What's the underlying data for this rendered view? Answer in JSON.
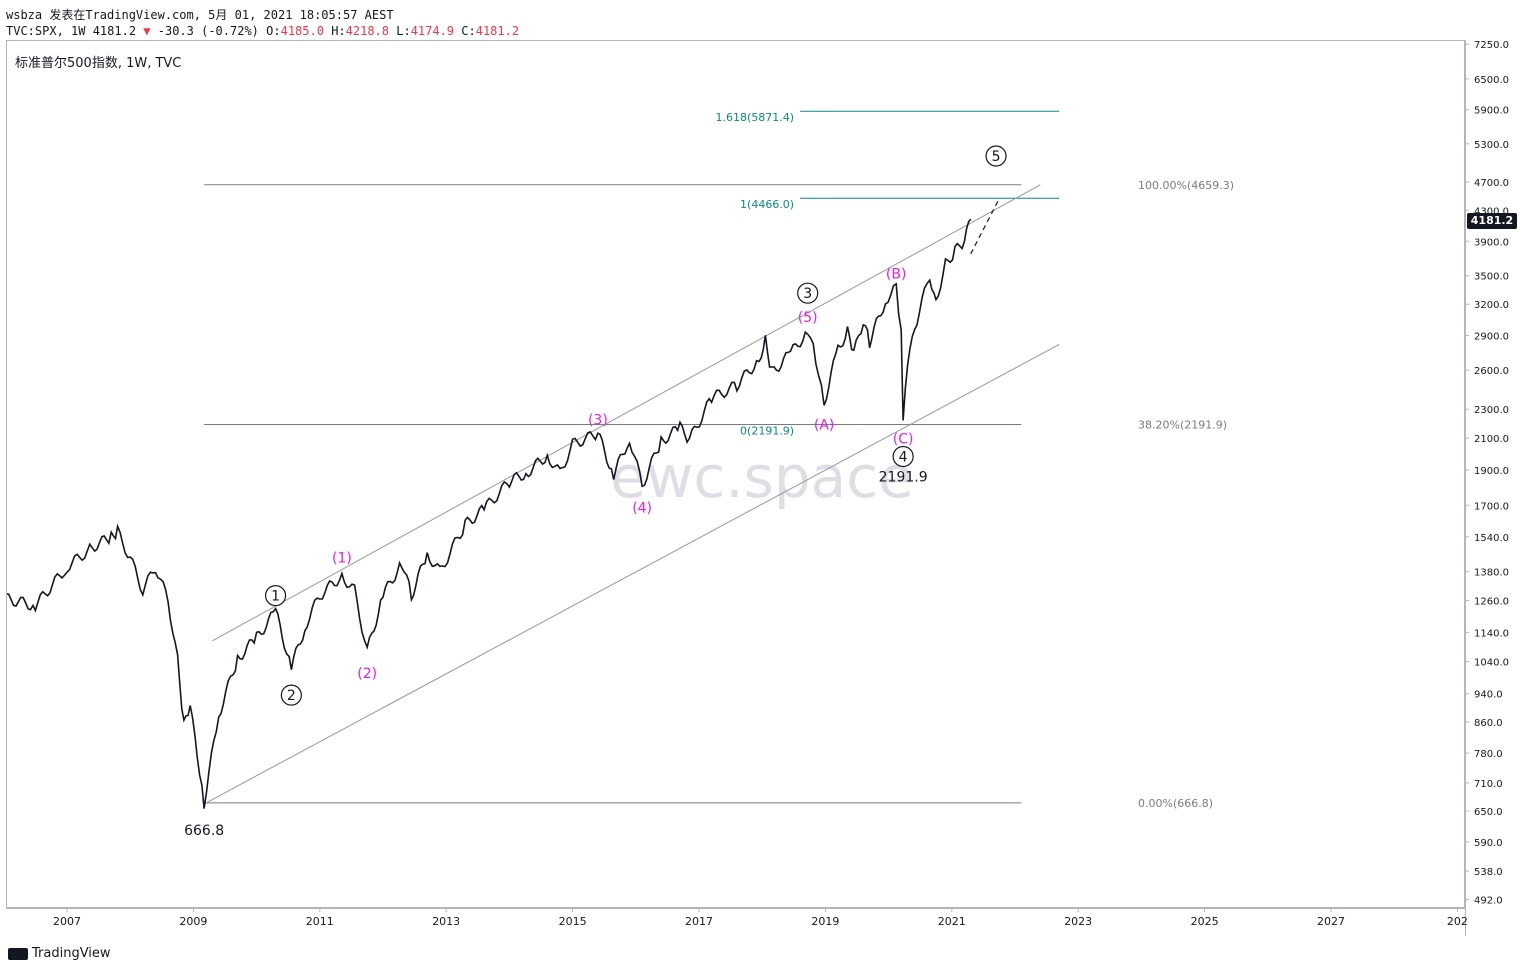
{
  "header": {
    "line1": "wsbza 发表在TradingView.com, 5月 01, 2021 18:05:57 AEST",
    "symbol": "TVC:SPX, 1W 4181.2",
    "change_arrow": "▼",
    "change": "-30.3 (-0.72%)",
    "o_label": "O:",
    "o_value": "4185.0",
    "h_label": "H:",
    "h_value": "4218.8",
    "l_label": "L:",
    "l_value": "4174.9",
    "c_label": "C:",
    "c_value": "4181.2"
  },
  "legend": "标准普尔500指数, 1W, TVC",
  "watermark": "ewc.space",
  "brand": "TradingView",
  "last_price_label": "4181.2",
  "colors": {
    "candles": "#131722",
    "magenta": "#e91ee0",
    "teal": "#0a8a80",
    "fib": "#787b86",
    "channel": "#9598a1"
  },
  "chart_data": {
    "type": "line",
    "title": "标准普尔500指数, 1W, TVC",
    "y_scale": "log",
    "ylim": [
      460,
      7600
    ],
    "y_ticks": [
      492.0,
      538.0,
      590.0,
      650.0,
      710.0,
      780.0,
      860.0,
      940.0,
      1040.0,
      1140.0,
      1260.0,
      1380.0,
      1540.0,
      1700.0,
      1900.0,
      2100.0,
      2300.0,
      2600.0,
      2900.0,
      3200.0,
      3500.0,
      3900.0,
      4300.0,
      4700.0,
      5300.0,
      5900.0,
      6500.0,
      7250.0
    ],
    "x_ticks": [
      "2007",
      "2009",
      "2011",
      "2013",
      "2015",
      "2017",
      "2019",
      "2021",
      "2023",
      "2025",
      "2027",
      "202"
    ],
    "series": [
      {
        "values": [
          {
            "x": 2006.0,
            "y": 1270
          },
          {
            "x": 2006.5,
            "y": 1240
          },
          {
            "x": 2007.0,
            "y": 1400
          },
          {
            "x": 2007.4,
            "y": 1490
          },
          {
            "x": 2007.7,
            "y": 1540
          },
          {
            "x": 2007.8,
            "y": 1565
          },
          {
            "x": 2008.0,
            "y": 1440
          },
          {
            "x": 2008.2,
            "y": 1300
          },
          {
            "x": 2008.4,
            "y": 1400
          },
          {
            "x": 2008.6,
            "y": 1260
          },
          {
            "x": 2008.75,
            "y": 1050
          },
          {
            "x": 2008.85,
            "y": 850
          },
          {
            "x": 2008.95,
            "y": 900
          },
          {
            "x": 2009.1,
            "y": 735
          },
          {
            "x": 2009.17,
            "y": 666.8
          },
          {
            "x": 2009.4,
            "y": 880
          },
          {
            "x": 2009.7,
            "y": 1050
          },
          {
            "x": 2010.0,
            "y": 1120
          },
          {
            "x": 2010.3,
            "y": 1217
          },
          {
            "x": 2010.55,
            "y": 1022
          },
          {
            "x": 2010.8,
            "y": 1180
          },
          {
            "x": 2011.0,
            "y": 1280
          },
          {
            "x": 2011.35,
            "y": 1363
          },
          {
            "x": 2011.55,
            "y": 1300
          },
          {
            "x": 2011.75,
            "y": 1075
          },
          {
            "x": 2012.0,
            "y": 1280
          },
          {
            "x": 2012.3,
            "y": 1420
          },
          {
            "x": 2012.45,
            "y": 1280
          },
          {
            "x": 2012.7,
            "y": 1460
          },
          {
            "x": 2012.9,
            "y": 1380
          },
          {
            "x": 2013.3,
            "y": 1600
          },
          {
            "x": 2013.6,
            "y": 1680
          },
          {
            "x": 2014.0,
            "y": 1830
          },
          {
            "x": 2014.3,
            "y": 1890
          },
          {
            "x": 2014.6,
            "y": 1990
          },
          {
            "x": 2014.8,
            "y": 1880
          },
          {
            "x": 2015.0,
            "y": 2060
          },
          {
            "x": 2015.4,
            "y": 2130
          },
          {
            "x": 2015.65,
            "y": 1870
          },
          {
            "x": 2015.9,
            "y": 2100
          },
          {
            "x": 2016.1,
            "y": 1810
          },
          {
            "x": 2016.4,
            "y": 2080
          },
          {
            "x": 2016.7,
            "y": 2170
          },
          {
            "x": 2016.85,
            "y": 2090
          },
          {
            "x": 2017.2,
            "y": 2380
          },
          {
            "x": 2017.6,
            "y": 2480
          },
          {
            "x": 2017.95,
            "y": 2690
          },
          {
            "x": 2018.05,
            "y": 2870
          },
          {
            "x": 2018.15,
            "y": 2580
          },
          {
            "x": 2018.45,
            "y": 2740
          },
          {
            "x": 2018.72,
            "y": 2940
          },
          {
            "x": 2018.85,
            "y": 2700
          },
          {
            "x": 2018.98,
            "y": 2350
          },
          {
            "x": 2019.2,
            "y": 2790
          },
          {
            "x": 2019.35,
            "y": 2930
          },
          {
            "x": 2019.45,
            "y": 2740
          },
          {
            "x": 2019.6,
            "y": 3020
          },
          {
            "x": 2019.7,
            "y": 2840
          },
          {
            "x": 2019.95,
            "y": 3240
          },
          {
            "x": 2020.12,
            "y": 3393
          },
          {
            "x": 2020.2,
            "y": 2900
          },
          {
            "x": 2020.23,
            "y": 2191.9
          },
          {
            "x": 2020.3,
            "y": 2650
          },
          {
            "x": 2020.45,
            "y": 3050
          },
          {
            "x": 2020.65,
            "y": 3500
          },
          {
            "x": 2020.75,
            "y": 3240
          },
          {
            "x": 2020.9,
            "y": 3630
          },
          {
            "x": 2021.05,
            "y": 3780
          },
          {
            "x": 2021.2,
            "y": 3900
          },
          {
            "x": 2021.3,
            "y": 4181.2
          }
        ]
      }
    ],
    "annotations": [
      {
        "text": "666.8",
        "x": 2009.17,
        "y": 666.8,
        "color": "#131722",
        "circled": false
      },
      {
        "text": "1",
        "x": 2010.3,
        "y": 1217,
        "color": "#131722",
        "circled": true
      },
      {
        "text": "2",
        "x": 2010.55,
        "y": 1022,
        "color": "#131722",
        "circled": true
      },
      {
        "text": "(1)",
        "x": 2011.35,
        "y": 1363,
        "color": "#e91ee0",
        "circled": false
      },
      {
        "text": "(2)",
        "x": 2011.75,
        "y": 1075,
        "color": "#e91ee0",
        "circled": false
      },
      {
        "text": "(3)",
        "x": 2015.4,
        "y": 2130,
        "color": "#e91ee0",
        "circled": false
      },
      {
        "text": "(4)",
        "x": 2016.1,
        "y": 1810,
        "color": "#e91ee0",
        "circled": false
      },
      {
        "text": "3",
        "x": 2018.72,
        "y": 2940,
        "color": "#131722",
        "circled": true
      },
      {
        "text": "(5)",
        "x": 2018.72,
        "y": 2940,
        "color": "#e91ee0",
        "circled": false
      },
      {
        "text": "(A)",
        "x": 2018.98,
        "y": 2350,
        "color": "#e91ee0",
        "circled": false
      },
      {
        "text": "(B)",
        "x": 2020.12,
        "y": 3393,
        "color": "#e91ee0",
        "circled": false
      },
      {
        "text": "(C)",
        "x": 2020.23,
        "y": 2191.9,
        "color": "#e91ee0",
        "circled": false
      },
      {
        "text": "4",
        "x": 2020.23,
        "y": 2191.9,
        "color": "#131722",
        "circled": true
      },
      {
        "text": "2191.9",
        "x": 2020.23,
        "y": 2191.9,
        "color": "#131722",
        "circled": false
      },
      {
        "text": "5",
        "x": 2021.7,
        "y": 5100,
        "color": "#131722",
        "circled": true
      }
    ],
    "fib_retracement": {
      "levels": [
        {
          "label": "100.00%(4659.3)",
          "value": 4659.3
        },
        {
          "label": "38.20%(2191.9)",
          "value": 2191.9
        },
        {
          "label": "0.00%(666.8)",
          "value": 666.8
        }
      ],
      "x_start": 2009.17,
      "x_end": 2022.1
    },
    "fib_extension": {
      "levels": [
        {
          "label": "1.618(5871.4)",
          "value": 5871.4
        },
        {
          "label": "1(4466.0)",
          "value": 4466.0
        },
        {
          "label": "0(2191.9)",
          "value": 2191.9
        }
      ],
      "x_start": 2018.6,
      "x_end": 2022.7
    },
    "channel": {
      "upper": [
        {
          "x": 2009.3,
          "y": 1110
        },
        {
          "x": 2022.4,
          "y": 4659.3
        }
      ],
      "lower": [
        {
          "x": 2009.2,
          "y": 666.8
        },
        {
          "x": 2022.7,
          "y": 2820
        }
      ]
    },
    "projection": [
      {
        "x": 2021.3,
        "y": 3750
      },
      {
        "x": 2021.75,
        "y": 4460
      }
    ]
  }
}
